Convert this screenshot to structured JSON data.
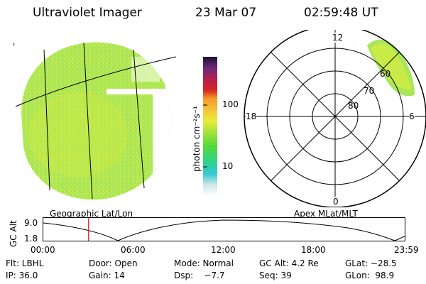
{
  "header": {
    "instrument": "Ultraviolet Imager",
    "date": "23 Mar 07",
    "time": "02:59:48 UT"
  },
  "image_panel": {
    "label": "Geographic Lat/Lon",
    "corner_mark": "'"
  },
  "colorbar": {
    "unit_label": "photon cm⁻²s⁻¹",
    "ticks": [
      "100",
      "10"
    ]
  },
  "polar_plot": {
    "label": "Apex MLat/MLT",
    "mlt_labels": {
      "top": "12",
      "left": "18",
      "right": "6",
      "bottom": "0"
    },
    "lat_labels": [
      "60",
      "70",
      "80"
    ]
  },
  "altitude_plot": {
    "ylabel": "GC Alt",
    "y_ticks": [
      "9.0",
      "1.8"
    ],
    "x_ticks": [
      "00:00",
      "06:00",
      "12:00",
      "18:00",
      "23:59"
    ],
    "current_time_fraction": 0.125
  },
  "footer": {
    "filter": "Flt: LBHL",
    "door": "Door: Open",
    "mode": "Mode: Normal",
    "gc_alt": "GC Alt: 4.2 Re",
    "glat": "GLat: −28.5",
    "ip": "IP: 36.0",
    "gain": "Gain: 14",
    "dsp": "Dsp:    −7.7",
    "seq": "Seq: 39",
    "glon": "GLon:  98.9"
  },
  "colors": {
    "image_green": "#9ee65a",
    "image_yellow": "#d7ec3c",
    "marker_red": "#e01010"
  }
}
